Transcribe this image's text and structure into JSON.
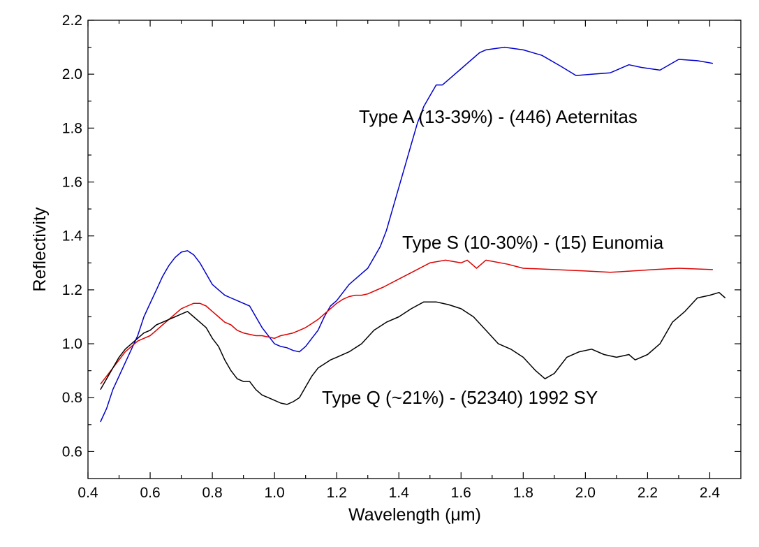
{
  "chart_data": {
    "type": "line",
    "title": "",
    "xlabel": "Wavelength (μm)",
    "ylabel": "Reflectivity",
    "xlim": [
      0.4,
      2.5
    ],
    "ylim": [
      0.5,
      2.2
    ],
    "x_ticks": [
      "0.4",
      "0.6",
      "0.8",
      "1.0",
      "1.2",
      "1.4",
      "1.6",
      "1.8",
      "2.0",
      "2.2",
      "2.4"
    ],
    "y_ticks": [
      "0.6",
      "0.8",
      "1.0",
      "1.2",
      "1.4",
      "1.6",
      "1.8",
      "2.0",
      "2.2"
    ],
    "grid": false,
    "legend": "none",
    "series": [
      {
        "label": "Type A (13-39%) - (446) Aeternitas",
        "color": "#0000cc",
        "points": [
          [
            0.44,
            0.71
          ],
          [
            0.46,
            0.76
          ],
          [
            0.48,
            0.83
          ],
          [
            0.5,
            0.88
          ],
          [
            0.52,
            0.93
          ],
          [
            0.54,
            0.98
          ],
          [
            0.56,
            1.03
          ],
          [
            0.58,
            1.1
          ],
          [
            0.6,
            1.15
          ],
          [
            0.62,
            1.2
          ],
          [
            0.64,
            1.25
          ],
          [
            0.66,
            1.29
          ],
          [
            0.68,
            1.32
          ],
          [
            0.7,
            1.34
          ],
          [
            0.72,
            1.345
          ],
          [
            0.74,
            1.33
          ],
          [
            0.76,
            1.3
          ],
          [
            0.78,
            1.26
          ],
          [
            0.8,
            1.22
          ],
          [
            0.82,
            1.2
          ],
          [
            0.84,
            1.18
          ],
          [
            0.86,
            1.17
          ],
          [
            0.88,
            1.16
          ],
          [
            0.9,
            1.15
          ],
          [
            0.92,
            1.14
          ],
          [
            0.94,
            1.1
          ],
          [
            0.96,
            1.06
          ],
          [
            0.98,
            1.03
          ],
          [
            1.0,
            1.0
          ],
          [
            1.02,
            0.99
          ],
          [
            1.04,
            0.985
          ],
          [
            1.06,
            0.975
          ],
          [
            1.08,
            0.97
          ],
          [
            1.1,
            0.99
          ],
          [
            1.12,
            1.02
          ],
          [
            1.14,
            1.05
          ],
          [
            1.16,
            1.1
          ],
          [
            1.18,
            1.14
          ],
          [
            1.2,
            1.16
          ],
          [
            1.22,
            1.19
          ],
          [
            1.24,
            1.22
          ],
          [
            1.26,
            1.24
          ],
          [
            1.28,
            1.26
          ],
          [
            1.3,
            1.28
          ],
          [
            1.32,
            1.32
          ],
          [
            1.34,
            1.36
          ],
          [
            1.36,
            1.42
          ],
          [
            1.38,
            1.5
          ],
          [
            1.4,
            1.58
          ],
          [
            1.42,
            1.66
          ],
          [
            1.44,
            1.74
          ],
          [
            1.46,
            1.82
          ],
          [
            1.48,
            1.88
          ],
          [
            1.5,
            1.92
          ],
          [
            1.52,
            1.96
          ],
          [
            1.54,
            1.96
          ],
          [
            1.56,
            1.98
          ],
          [
            1.58,
            2.0
          ],
          [
            1.6,
            2.02
          ],
          [
            1.62,
            2.04
          ],
          [
            1.64,
            2.06
          ],
          [
            1.66,
            2.08
          ],
          [
            1.68,
            2.09
          ],
          [
            1.74,
            2.1
          ],
          [
            1.8,
            2.09
          ],
          [
            1.86,
            2.07
          ],
          [
            1.92,
            2.03
          ],
          [
            1.97,
            1.995
          ],
          [
            2.02,
            2.0
          ],
          [
            2.08,
            2.005
          ],
          [
            2.14,
            2.035
          ],
          [
            2.18,
            2.025
          ],
          [
            2.24,
            2.015
          ],
          [
            2.3,
            2.055
          ],
          [
            2.36,
            2.05
          ],
          [
            2.41,
            2.04
          ]
        ]
      },
      {
        "label": "Type S (10-30%) - (15) Eunomia",
        "color": "#dd0000",
        "points": [
          [
            0.44,
            0.85
          ],
          [
            0.46,
            0.88
          ],
          [
            0.48,
            0.91
          ],
          [
            0.5,
            0.94
          ],
          [
            0.52,
            0.97
          ],
          [
            0.54,
            0.99
          ],
          [
            0.56,
            1.01
          ],
          [
            0.58,
            1.02
          ],
          [
            0.6,
            1.03
          ],
          [
            0.62,
            1.05
          ],
          [
            0.64,
            1.07
          ],
          [
            0.66,
            1.09
          ],
          [
            0.68,
            1.11
          ],
          [
            0.7,
            1.13
          ],
          [
            0.72,
            1.14
          ],
          [
            0.74,
            1.15
          ],
          [
            0.76,
            1.15
          ],
          [
            0.78,
            1.14
          ],
          [
            0.8,
            1.12
          ],
          [
            0.82,
            1.1
          ],
          [
            0.84,
            1.08
          ],
          [
            0.86,
            1.07
          ],
          [
            0.88,
            1.05
          ],
          [
            0.9,
            1.04
          ],
          [
            0.92,
            1.035
          ],
          [
            0.94,
            1.03
          ],
          [
            0.96,
            1.03
          ],
          [
            0.98,
            1.025
          ],
          [
            1.0,
            1.02
          ],
          [
            1.02,
            1.03
          ],
          [
            1.04,
            1.035
          ],
          [
            1.06,
            1.04
          ],
          [
            1.08,
            1.05
          ],
          [
            1.1,
            1.06
          ],
          [
            1.12,
            1.075
          ],
          [
            1.14,
            1.09
          ],
          [
            1.16,
            1.11
          ],
          [
            1.18,
            1.13
          ],
          [
            1.2,
            1.15
          ],
          [
            1.22,
            1.165
          ],
          [
            1.24,
            1.175
          ],
          [
            1.26,
            1.18
          ],
          [
            1.28,
            1.18
          ],
          [
            1.3,
            1.185
          ],
          [
            1.35,
            1.21
          ],
          [
            1.4,
            1.24
          ],
          [
            1.45,
            1.27
          ],
          [
            1.5,
            1.3
          ],
          [
            1.55,
            1.31
          ],
          [
            1.6,
            1.3
          ],
          [
            1.62,
            1.31
          ],
          [
            1.65,
            1.28
          ],
          [
            1.68,
            1.31
          ],
          [
            1.75,
            1.295
          ],
          [
            1.8,
            1.28
          ],
          [
            1.9,
            1.275
          ],
          [
            2.0,
            1.27
          ],
          [
            2.08,
            1.265
          ],
          [
            2.15,
            1.27
          ],
          [
            2.22,
            1.275
          ],
          [
            2.3,
            1.28
          ],
          [
            2.41,
            1.275
          ]
        ]
      },
      {
        "label": "Type Q (~21%) - (52340) 1992 SY",
        "color": "#000000",
        "points": [
          [
            0.44,
            0.83
          ],
          [
            0.46,
            0.87
          ],
          [
            0.48,
            0.91
          ],
          [
            0.5,
            0.95
          ],
          [
            0.52,
            0.98
          ],
          [
            0.54,
            1.0
          ],
          [
            0.56,
            1.02
          ],
          [
            0.58,
            1.04
          ],
          [
            0.6,
            1.05
          ],
          [
            0.62,
            1.07
          ],
          [
            0.64,
            1.08
          ],
          [
            0.66,
            1.09
          ],
          [
            0.68,
            1.1
          ],
          [
            0.7,
            1.11
          ],
          [
            0.72,
            1.12
          ],
          [
            0.74,
            1.1
          ],
          [
            0.76,
            1.08
          ],
          [
            0.78,
            1.06
          ],
          [
            0.8,
            1.02
          ],
          [
            0.82,
            0.99
          ],
          [
            0.84,
            0.94
          ],
          [
            0.86,
            0.9
          ],
          [
            0.88,
            0.87
          ],
          [
            0.9,
            0.86
          ],
          [
            0.92,
            0.86
          ],
          [
            0.94,
            0.83
          ],
          [
            0.96,
            0.81
          ],
          [
            0.98,
            0.8
          ],
          [
            1.0,
            0.79
          ],
          [
            1.02,
            0.78
          ],
          [
            1.04,
            0.775
          ],
          [
            1.06,
            0.785
          ],
          [
            1.08,
            0.8
          ],
          [
            1.1,
            0.84
          ],
          [
            1.12,
            0.88
          ],
          [
            1.14,
            0.91
          ],
          [
            1.16,
            0.925
          ],
          [
            1.18,
            0.94
          ],
          [
            1.2,
            0.95
          ],
          [
            1.24,
            0.97
          ],
          [
            1.28,
            1.0
          ],
          [
            1.32,
            1.05
          ],
          [
            1.36,
            1.08
          ],
          [
            1.4,
            1.1
          ],
          [
            1.44,
            1.13
          ],
          [
            1.48,
            1.155
          ],
          [
            1.52,
            1.155
          ],
          [
            1.56,
            1.145
          ],
          [
            1.6,
            1.13
          ],
          [
            1.64,
            1.1
          ],
          [
            1.68,
            1.05
          ],
          [
            1.72,
            1.0
          ],
          [
            1.76,
            0.98
          ],
          [
            1.8,
            0.95
          ],
          [
            1.84,
            0.9
          ],
          [
            1.87,
            0.87
          ],
          [
            1.9,
            0.89
          ],
          [
            1.94,
            0.95
          ],
          [
            1.98,
            0.97
          ],
          [
            2.02,
            0.98
          ],
          [
            2.06,
            0.96
          ],
          [
            2.1,
            0.95
          ],
          [
            2.14,
            0.96
          ],
          [
            2.16,
            0.94
          ],
          [
            2.2,
            0.96
          ],
          [
            2.24,
            1.0
          ],
          [
            2.28,
            1.08
          ],
          [
            2.32,
            1.12
          ],
          [
            2.36,
            1.17
          ],
          [
            2.4,
            1.18
          ],
          [
            2.43,
            1.19
          ],
          [
            2.45,
            1.17
          ]
        ]
      }
    ]
  }
}
